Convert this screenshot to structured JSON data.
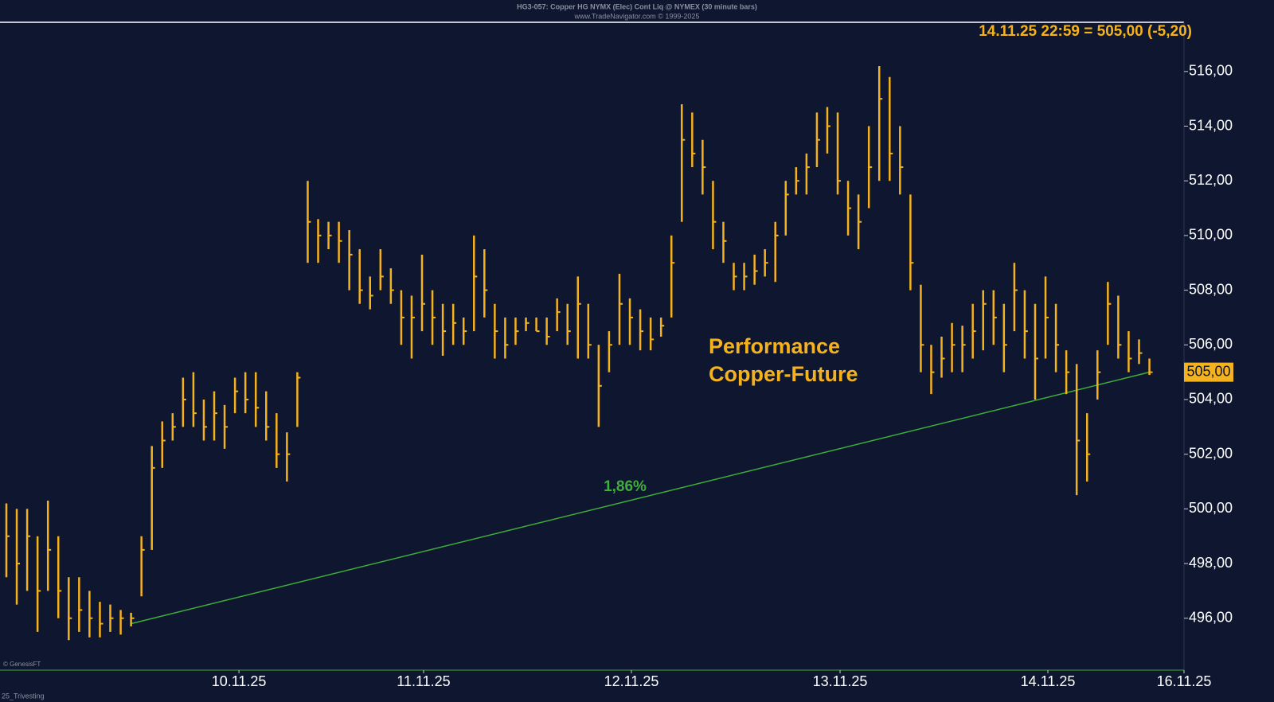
{
  "chart_data": {
    "type": "ohlc",
    "title": "HG3-057: Copper HG NYMX (Elec) Cont Liq @ NYMEX (30 minute bars)",
    "subtitle": "www.TradeNavigator.com © 1999-2025",
    "info": "14.11.25 22:59 = 505,00 (-5,20)",
    "annotations": [
      "Performance",
      "Copper-Future"
    ],
    "trend_label": "1,86%",
    "trendline": {
      "x": [
        12,
        110
      ],
      "y": [
        495.8,
        505
      ]
    },
    "last_price": {
      "value": 505,
      "label": "505,00"
    },
    "footer": [
      "© GenesisFT",
      "25_Trivesting"
    ],
    "color": "#f5b21f",
    "trend_color": "#3fae3a",
    "xlim": [
      -0.613,
      113.33
    ],
    "ylim": [
      494.1,
      517.8
    ],
    "xticks": [
      {
        "value": 22.38,
        "label": "10.11.25"
      },
      {
        "value": 40.15,
        "label": "11.11.25"
      },
      {
        "value": 60.15,
        "label": "12.11.25"
      },
      {
        "value": 80.23,
        "label": "13.11.25"
      },
      {
        "value": 100.23,
        "label": "14.11.25"
      },
      {
        "value": 113.33,
        "label": "16.11.25"
      }
    ],
    "yticks": [
      {
        "value": 496,
        "label": "496,00"
      },
      {
        "value": 498,
        "label": "498,00"
      },
      {
        "value": 500,
        "label": "500,00"
      },
      {
        "value": 502,
        "label": "502,00"
      },
      {
        "value": 504,
        "label": "504,00"
      },
      {
        "value": 506,
        "label": "506,00"
      },
      {
        "value": 508,
        "label": "508,00"
      },
      {
        "value": 510,
        "label": "510,00"
      },
      {
        "value": 512,
        "label": "512,00"
      },
      {
        "value": 514,
        "label": "514,00"
      },
      {
        "value": 516,
        "label": "516,00"
      }
    ],
    "high": [
      500.2,
      500,
      500,
      499,
      500.3,
      499,
      497.5,
      497.5,
      497,
      496.6,
      496.5,
      496.3,
      496.2,
      499,
      502.3,
      503.2,
      503.5,
      504.8,
      505,
      504,
      504.3,
      503.8,
      504.8,
      505,
      505,
      504.3,
      503.5,
      502.8,
      505,
      512,
      510.6,
      510.5,
      510.5,
      510.2,
      509.5,
      508.5,
      509.5,
      508.8,
      508,
      507.8,
      509.3,
      508,
      507.5,
      507.5,
      507,
      510,
      509.5,
      507.5,
      507,
      507,
      507,
      507,
      507,
      507.7,
      507.5,
      508.5,
      507.5,
      506,
      506.5,
      508.6,
      507.7,
      507.3,
      507,
      507,
      510,
      514.8,
      514.5,
      513.5,
      512,
      510.5,
      509,
      509,
      509.3,
      509.5,
      510.5,
      512,
      512.5,
      513,
      514.5,
      514.7,
      514.5,
      512,
      511.5,
      514,
      516.2,
      515.8,
      514,
      511.5,
      508.2,
      506,
      506.3,
      506.8,
      506.7,
      507.5,
      508,
      508,
      507.5,
      509,
      508,
      507.5,
      508.5,
      507.5,
      505.8,
      505.3,
      503.5,
      505.8,
      508.3,
      507.8,
      506.5,
      506.2,
      505.5
    ],
    "low": [
      497.5,
      496.5,
      497,
      495.5,
      497,
      496,
      495.2,
      495.5,
      495.3,
      495.3,
      495.5,
      495.4,
      495.7,
      496.8,
      498.5,
      501.5,
      502.5,
      503,
      503,
      502.5,
      502.5,
      502.2,
      503.5,
      503.5,
      503,
      502.5,
      501.5,
      501,
      503,
      509,
      509,
      509.5,
      509,
      508,
      507.5,
      507.3,
      508,
      507.5,
      506,
      505.5,
      506.5,
      506,
      505.6,
      506,
      506,
      506.5,
      507,
      505.5,
      505.5,
      506,
      506.5,
      506.5,
      506,
      506.5,
      506,
      505.5,
      505.5,
      503,
      505,
      506,
      506,
      505.8,
      505.8,
      506.3,
      507,
      510.5,
      512.5,
      511.5,
      509.5,
      509,
      508,
      508,
      508.2,
      508.5,
      508.3,
      510,
      511.5,
      511.5,
      512.5,
      513,
      511.5,
      510,
      509.5,
      511,
      512,
      512,
      511.5,
      508,
      505,
      504.2,
      504.8,
      505,
      505,
      505.5,
      505.8,
      506,
      505,
      506.5,
      505.5,
      504,
      505.5,
      505,
      504.2,
      500.5,
      501,
      504,
      506,
      505.5,
      505,
      505.3,
      504.9
    ],
    "close": [
      499,
      498,
      499,
      497,
      498.5,
      497,
      496,
      496.3,
      496,
      495.8,
      496,
      496,
      496,
      498.5,
      501.5,
      502.5,
      503,
      504,
      503.5,
      503,
      503.5,
      503,
      504.3,
      504,
      503.7,
      503,
      502,
      502,
      504.8,
      510.5,
      510,
      510,
      509.8,
      509.3,
      508,
      507.8,
      508.5,
      508,
      507,
      507,
      507.5,
      507,
      506.5,
      506.8,
      506.5,
      508.5,
      508,
      506.5,
      506,
      506.5,
      506.8,
      506.5,
      506.3,
      507.2,
      506.5,
      507.5,
      506,
      504.5,
      506,
      507.5,
      507,
      506.5,
      506.2,
      506.7,
      509,
      513.5,
      513,
      512.5,
      510.5,
      509.8,
      508.5,
      508.5,
      508.7,
      509,
      510,
      511.5,
      512,
      512.5,
      513.5,
      514,
      512,
      511,
      510.5,
      512.5,
      515,
      513,
      512.5,
      509,
      506,
      505,
      505.5,
      506,
      506,
      506.5,
      507.5,
      507,
      506,
      508,
      506.5,
      505.5,
      507,
      506,
      505,
      502.5,
      502,
      505,
      507.5,
      506,
      505.5,
      505.7,
      505
    ]
  }
}
